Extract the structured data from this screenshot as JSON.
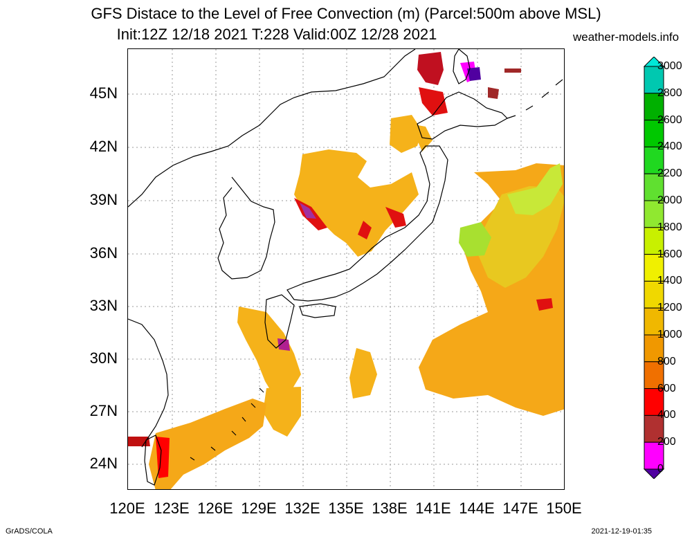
{
  "title_line1": "GFS Distace to the Level of Free Convection (m) (Parcel:500m above MSL)",
  "title_line2": "Init:12Z 12/18 2021 T:228 Valid:00Z 12/28 2021",
  "site": "weather-models.info",
  "footer_left": "GrADS/COLA",
  "footer_right": "2021-12-19-01:35",
  "lat_labels": [
    "45N",
    "42N",
    "39N",
    "36N",
    "33N",
    "30N",
    "27N",
    "24N"
  ],
  "lon_labels": [
    "120E",
    "123E",
    "126E",
    "129E",
    "132E",
    "135E",
    "138E",
    "141E",
    "144E",
    "147E",
    "150E"
  ],
  "colorbar": {
    "levels": [
      "3000",
      "2800",
      "2600",
      "2400",
      "2200",
      "2000",
      "1800",
      "1600",
      "1400",
      "1200",
      "1000",
      "800",
      "600",
      "400",
      "200",
      "0"
    ],
    "colors": [
      "#00e8d8",
      "#00c8b0",
      "#00b000",
      "#00c800",
      "#20d820",
      "#60e030",
      "#90e830",
      "#c8f000",
      "#f0f000",
      "#f0d800",
      "#f0b800",
      "#f09800",
      "#f07000",
      "#ff0000",
      "#b03030",
      "#ff00ff",
      "#5000a0"
    ]
  }
}
